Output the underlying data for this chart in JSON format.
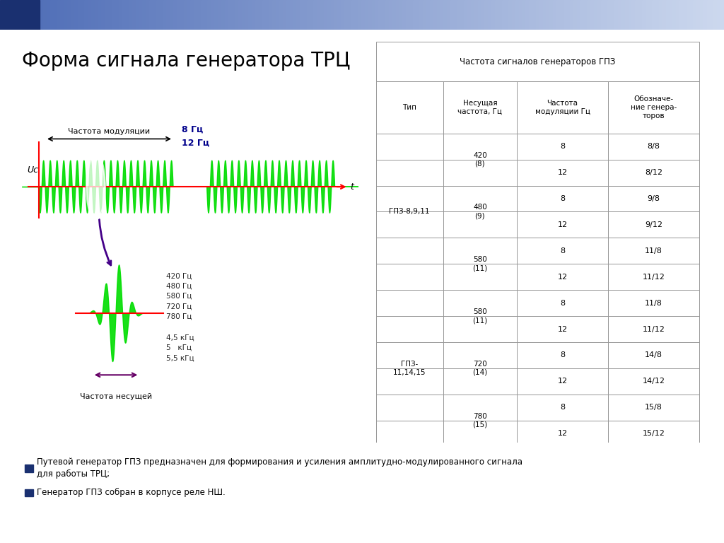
{
  "title": "Форма сигнала генератора ТРЦ",
  "title_fontsize": 20,
  "title_color": "#000000",
  "background_color": "#ffffff",
  "image_bg": "#b8b8b8",
  "bullet1": "Путевой генератор ГПЗ предназначен для формирования и усиления амплитудно-модулированного сигнала\nдля работы ТРЦ;",
  "bullet2": "Генератор ГПЗ собран в корпусе реле НШ.",
  "table_title": "Частота сигналов генераторов ГПЗ",
  "col_headers": [
    "Тип",
    "Несущая\nчастота, Гц",
    "Частота\nмодуляции Гц",
    "Обозначе-\nние генера-\nторов"
  ],
  "signal_label_modulation": "Частота модуляции",
  "signal_label_freq8": "8 Гц",
  "signal_label_freq12": "12 Гц",
  "signal_label_uc": "Uc",
  "signal_label_t": "t",
  "signal_label_carrier": "Частота несущей",
  "carrier_freqs": "420 Гц\n480 Гц\n580 Гц\n720 Гц\n780 Гц",
  "carrier_freqs2": "4,5 кГц\n5   кГц\n5,5 кГц"
}
